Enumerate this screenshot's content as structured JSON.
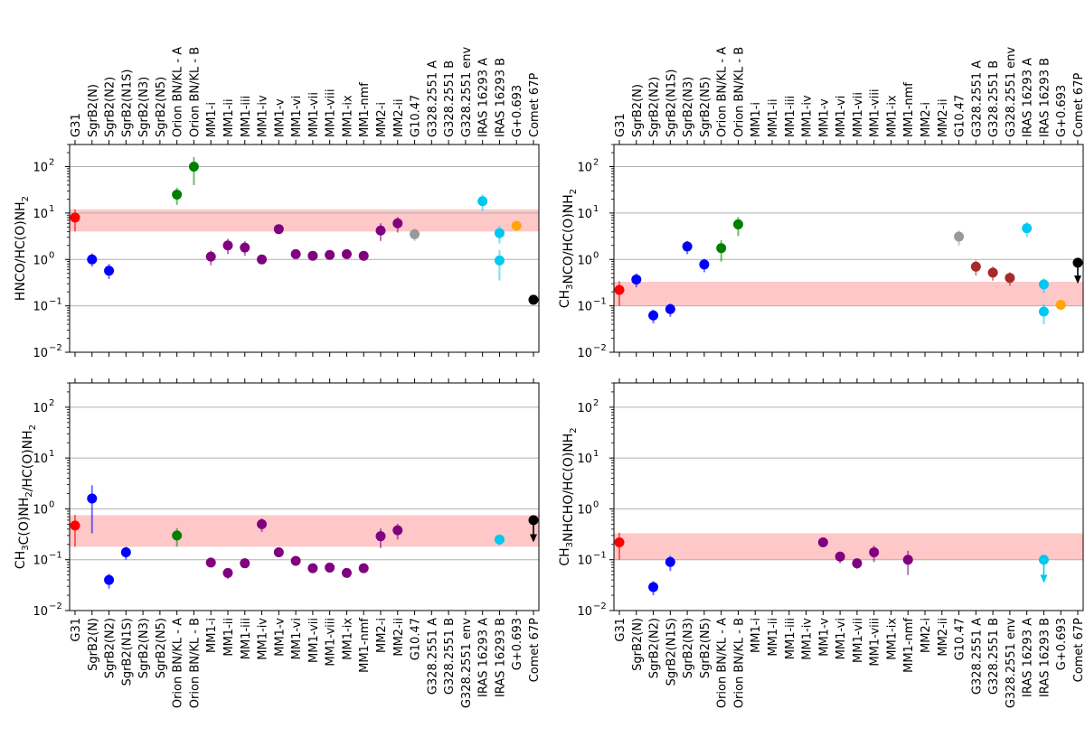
{
  "figure": {
    "categories_left": [
      "G31",
      "SgrB2(N)",
      "SgrB2(N2)",
      "SgrB2(N1S)",
      "SgrB2(N3)",
      "SgrB2(N5)",
      "Orion BN/KL - A",
      "Orion BN/KL - B",
      "MM1-i",
      "MM1-ii",
      "MM1-iii",
      "MM1-iv",
      "MM1-v",
      "MM1-vi",
      "MM1-vii",
      "MM1-viii",
      "MM1-ix",
      "MM1-nmf",
      "MM2-i",
      "MM2-ii",
      "G10.47",
      "G328.2551 A",
      "G328.2551 B",
      "G328.2551 env",
      "IRAS 16293 A",
      "IRAS 16293 B",
      "G+0.693",
      "Comet 67P"
    ],
    "categories_right": [
      "G31",
      "SgrB2(N)",
      "SgrB2(N2)",
      "SgrB2(N1S)",
      "SgrB2(N3)",
      "SgrB2(N5)",
      "Orion BN/KL - A",
      "Orion BN/KL - B",
      "MM1-i",
      "MM1-ii",
      "MM1-iii",
      "MM1-iv",
      "MM1-v",
      "MM1-vi",
      "MM1-vii",
      "MM1-viii",
      "MM1-ix",
      "MM1-nmf",
      "MM2-i",
      "MM2-ii",
      "G10.47",
      "G328.2551 A",
      "G328.2551 B",
      "G328.2551 env",
      "IRAS 16293 A",
      "IRAS 16293 B",
      "G+0.693",
      "Comet 67P"
    ],
    "y_ticks": [
      "10",
      "10",
      "10",
      "10",
      "10"
    ],
    "y_tick_exponents": [
      "−2",
      "−1",
      "0",
      "1",
      "2"
    ],
    "colors": {
      "G31": "#ff0000",
      "SgrB2": "#0000ff",
      "Orion": "#008000",
      "MM": "#800080",
      "G10.47": "#999999",
      "G328": "#a52a2a",
      "IRAS": "#00c8f0",
      "G0693": "#ffa500",
      "Comet": "#000000",
      "band": "#ffc8c8"
    }
  },
  "chart_data": [
    {
      "type": "scatter",
      "panel": "top-left",
      "ylabel": {
        "pre": "HNCO/HC(O)NH",
        "sub": "2",
        "post": ""
      },
      "yscale": "log",
      "ylim": [
        0.01,
        300
      ],
      "band": [
        4,
        12
      ],
      "points": [
        {
          "cat": 0,
          "value": 8.0,
          "err": [
            4.0,
            12.0
          ],
          "color": "G31"
        },
        {
          "cat": 1,
          "value": 1.0,
          "err": [
            0.7,
            1.35
          ],
          "color": "SgrB2"
        },
        {
          "cat": 2,
          "value": 0.57,
          "err": [
            0.38,
            0.8
          ],
          "color": "SgrB2"
        },
        {
          "cat": 6,
          "value": 25,
          "err": [
            15,
            35
          ],
          "color": "Orion"
        },
        {
          "cat": 7,
          "value": 100,
          "err": [
            40,
            160
          ],
          "color": "Orion"
        },
        {
          "cat": 8,
          "value": 1.15,
          "err": [
            0.75,
            1.55
          ],
          "color": "MM"
        },
        {
          "cat": 9,
          "value": 2.0,
          "err": [
            1.3,
            2.8
          ],
          "color": "MM"
        },
        {
          "cat": 10,
          "value": 1.8,
          "err": [
            1.2,
            2.5
          ],
          "color": "MM"
        },
        {
          "cat": 11,
          "value": 1.0,
          "err": [
            0.85,
            1.15
          ],
          "color": "MM"
        },
        {
          "cat": 12,
          "value": 4.5,
          "err": [
            3.8,
            5.2
          ],
          "color": "MM"
        },
        {
          "cat": 13,
          "value": 1.3,
          "err": [
            1.15,
            1.45
          ],
          "color": "MM"
        },
        {
          "cat": 14,
          "value": 1.2,
          "err": [
            1.05,
            1.35
          ],
          "color": "MM"
        },
        {
          "cat": 15,
          "value": 1.25,
          "err": [
            1.1,
            1.4
          ],
          "color": "MM"
        },
        {
          "cat": 16,
          "value": 1.3,
          "err": [
            1.15,
            1.45
          ],
          "color": "MM"
        },
        {
          "cat": 17,
          "value": 1.2,
          "err": [
            1.05,
            1.35
          ],
          "color": "MM"
        },
        {
          "cat": 18,
          "value": 4.2,
          "err": [
            2.5,
            6.0
          ],
          "color": "MM"
        },
        {
          "cat": 19,
          "value": 6.0,
          "err": [
            3.8,
            8.2
          ],
          "color": "MM"
        },
        {
          "cat": 20,
          "value": 3.5,
          "err": [
            2.5,
            4.6
          ],
          "color": "G10.47"
        },
        {
          "cat": 24,
          "value": 18,
          "err": [
            11,
            25
          ],
          "color": "IRAS"
        },
        {
          "cat": 25,
          "value": 3.7,
          "err": [
            2.2,
            5.2
          ],
          "color": "IRAS"
        },
        {
          "cat": 25,
          "value": 0.95,
          "err": [
            0.35,
            1.6
          ],
          "color": "IRAS"
        },
        {
          "cat": 26,
          "value": 5.3,
          "err": [
            4.6,
            6.0
          ],
          "color": "G0693"
        },
        {
          "cat": 27,
          "value": 0.135,
          "err": [
            0.115,
            0.155
          ],
          "color": "Comet"
        }
      ]
    },
    {
      "type": "scatter",
      "panel": "top-right",
      "ylabel": {
        "pre": "CH",
        "sub": "3",
        "post": "NCO/HC(O)NH",
        "sub2": "2"
      },
      "yscale": "log",
      "ylim": [
        0.01,
        300
      ],
      "band": [
        0.1,
        0.33
      ],
      "points": [
        {
          "cat": 0,
          "value": 0.22,
          "err": [
            0.1,
            0.34
          ],
          "color": "G31"
        },
        {
          "cat": 1,
          "value": 0.37,
          "err": [
            0.25,
            0.5
          ],
          "color": "SgrB2"
        },
        {
          "cat": 2,
          "value": 0.062,
          "err": [
            0.042,
            0.083
          ],
          "color": "SgrB2"
        },
        {
          "cat": 3,
          "value": 0.085,
          "err": [
            0.058,
            0.112
          ],
          "color": "SgrB2"
        },
        {
          "cat": 4,
          "value": 1.9,
          "err": [
            1.3,
            2.5
          ],
          "color": "SgrB2"
        },
        {
          "cat": 5,
          "value": 0.78,
          "err": [
            0.53,
            1.03
          ],
          "color": "SgrB2"
        },
        {
          "cat": 6,
          "value": 1.75,
          "err": [
            0.9,
            2.6
          ],
          "color": "Orion"
        },
        {
          "cat": 7,
          "value": 5.7,
          "err": [
            3.2,
            8.2
          ],
          "color": "Orion"
        },
        {
          "cat": 20,
          "value": 3.1,
          "err": [
            2.0,
            4.2
          ],
          "color": "G10.47"
        },
        {
          "cat": 21,
          "value": 0.7,
          "err": [
            0.45,
            0.95
          ],
          "color": "G328"
        },
        {
          "cat": 22,
          "value": 0.52,
          "err": [
            0.35,
            0.7
          ],
          "color": "G328"
        },
        {
          "cat": 23,
          "value": 0.4,
          "err": [
            0.27,
            0.53
          ],
          "color": "G328"
        },
        {
          "cat": 24,
          "value": 4.7,
          "err": [
            3.0,
            6.4
          ],
          "color": "IRAS"
        },
        {
          "cat": 25,
          "value": 0.29,
          "err": [
            0.19,
            0.39
          ],
          "color": "IRAS"
        },
        {
          "cat": 25,
          "value": 0.075,
          "err": [
            0.04,
            0.11
          ],
          "color": "IRAS"
        },
        {
          "cat": 26,
          "value": 0.105,
          "err": [
            0.095,
            0.115
          ],
          "color": "G0693"
        },
        {
          "cat": 27,
          "value": 0.85,
          "err": [
            0.85,
            0.85
          ],
          "color": "Comet",
          "upper_limit": true,
          "arrow_to": 0.3
        }
      ]
    },
    {
      "type": "scatter",
      "panel": "bottom-left",
      "ylabel": {
        "pre": "CH",
        "sub": "3",
        "post": "C(O)NH",
        "sub2": "2",
        "post2": "/HC(O)NH",
        "sub3": "2"
      },
      "yscale": "log",
      "ylim": [
        0.01,
        300
      ],
      "band": [
        0.18,
        0.75
      ],
      "points": [
        {
          "cat": 0,
          "value": 0.47,
          "err": [
            0.18,
            0.76
          ],
          "color": "G31"
        },
        {
          "cat": 1,
          "value": 1.6,
          "err": [
            0.33,
            2.9
          ],
          "color": "SgrB2"
        },
        {
          "cat": 2,
          "value": 0.04,
          "err": [
            0.027,
            0.053
          ],
          "color": "SgrB2"
        },
        {
          "cat": 3,
          "value": 0.14,
          "err": [
            0.1,
            0.18
          ],
          "color": "SgrB2"
        },
        {
          "cat": 6,
          "value": 0.3,
          "err": [
            0.18,
            0.42
          ],
          "color": "Orion"
        },
        {
          "cat": 8,
          "value": 0.088,
          "err": [
            0.078,
            0.098
          ],
          "color": "MM"
        },
        {
          "cat": 9,
          "value": 0.055,
          "err": [
            0.042,
            0.068
          ],
          "color": "MM"
        },
        {
          "cat": 10,
          "value": 0.085,
          "err": [
            0.07,
            0.1
          ],
          "color": "MM"
        },
        {
          "cat": 11,
          "value": 0.5,
          "err": [
            0.35,
            0.65
          ],
          "color": "MM"
        },
        {
          "cat": 12,
          "value": 0.14,
          "err": [
            0.125,
            0.155
          ],
          "color": "MM"
        },
        {
          "cat": 13,
          "value": 0.095,
          "err": [
            0.085,
            0.105
          ],
          "color": "MM"
        },
        {
          "cat": 14,
          "value": 0.068,
          "err": [
            0.06,
            0.076
          ],
          "color": "MM"
        },
        {
          "cat": 15,
          "value": 0.07,
          "err": [
            0.062,
            0.078
          ],
          "color": "MM"
        },
        {
          "cat": 16,
          "value": 0.055,
          "err": [
            0.049,
            0.061
          ],
          "color": "MM"
        },
        {
          "cat": 17,
          "value": 0.068,
          "err": [
            0.06,
            0.076
          ],
          "color": "MM"
        },
        {
          "cat": 18,
          "value": 0.29,
          "err": [
            0.17,
            0.41
          ],
          "color": "MM"
        },
        {
          "cat": 19,
          "value": 0.38,
          "err": [
            0.25,
            0.51
          ],
          "color": "MM"
        },
        {
          "cat": 25,
          "value": 0.25,
          "err": [
            0.19,
            0.31
          ],
          "color": "IRAS"
        },
        {
          "cat": 27,
          "value": 0.6,
          "err": [
            0.6,
            0.6
          ],
          "color": "Comet",
          "upper_limit": true,
          "arrow_to": 0.22
        }
      ]
    },
    {
      "type": "scatter",
      "panel": "bottom-right",
      "ylabel": {
        "pre": "CH",
        "sub": "3",
        "post": "NHCHO/HC(O)NH",
        "sub2": "2"
      },
      "yscale": "log",
      "ylim": [
        0.01,
        300
      ],
      "band": [
        0.1,
        0.33
      ],
      "points": [
        {
          "cat": 0,
          "value": 0.22,
          "err": [
            0.1,
            0.34
          ],
          "color": "G31"
        },
        {
          "cat": 2,
          "value": 0.029,
          "err": [
            0.02,
            0.038
          ],
          "color": "SgrB2"
        },
        {
          "cat": 3,
          "value": 0.09,
          "err": [
            0.06,
            0.12
          ],
          "color": "SgrB2"
        },
        {
          "cat": 12,
          "value": 0.22,
          "err": [
            0.195,
            0.245
          ],
          "color": "MM"
        },
        {
          "cat": 13,
          "value": 0.115,
          "err": [
            0.085,
            0.145
          ],
          "color": "MM"
        },
        {
          "cat": 14,
          "value": 0.085,
          "err": [
            0.066,
            0.104
          ],
          "color": "MM"
        },
        {
          "cat": 15,
          "value": 0.14,
          "err": [
            0.09,
            0.19
          ],
          "color": "MM"
        },
        {
          "cat": 17,
          "value": 0.1,
          "err": [
            0.05,
            0.15
          ],
          "color": "MM"
        },
        {
          "cat": 25,
          "value": 0.1,
          "err": [
            0.1,
            0.1
          ],
          "color": "IRAS",
          "upper_limit": true,
          "arrow_to": 0.035
        }
      ]
    }
  ]
}
